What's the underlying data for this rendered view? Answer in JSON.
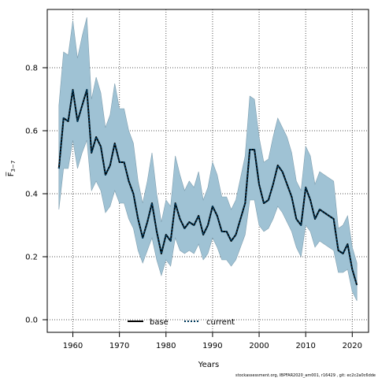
{
  "chart_data": {
    "type": "line",
    "title": "",
    "xlabel": "Years",
    "ylabel": "F̅",
    "ylabel_subscript": "3−7",
    "xlim": [
      1954.5,
      2023.5
    ],
    "ylim": [
      -0.04,
      0.985
    ],
    "xticks": [
      1960,
      1970,
      1980,
      1990,
      2000,
      2010,
      2020
    ],
    "yticks": [
      0.0,
      0.2,
      0.4,
      0.6,
      0.8
    ],
    "xtick_labels": [
      "1960",
      "1970",
      "1980",
      "1990",
      "2000",
      "2010",
      "2020"
    ],
    "ytick_labels": [
      "0.0",
      "0.2",
      "0.4",
      "0.6",
      "0.8"
    ],
    "grid": true,
    "legend_position": "bottom-center",
    "colors": {
      "band": "#9fc2d4",
      "band_edge": "#7f9fb0",
      "current": "#003a5c",
      "base": "#000000"
    },
    "x": [
      1957,
      1958,
      1959,
      1960,
      1961,
      1962,
      1963,
      1964,
      1965,
      1966,
      1967,
      1968,
      1969,
      1970,
      1971,
      1972,
      1973,
      1974,
      1975,
      1976,
      1977,
      1978,
      1979,
      1980,
      1981,
      1982,
      1983,
      1984,
      1985,
      1986,
      1987,
      1988,
      1989,
      1990,
      1991,
      1992,
      1993,
      1994,
      1995,
      1996,
      1997,
      1998,
      1999,
      2000,
      2001,
      2002,
      2003,
      2004,
      2005,
      2006,
      2007,
      2008,
      2009,
      2010,
      2011,
      2012,
      2013,
      2014,
      2015,
      2016,
      2017,
      2018,
      2019,
      2020,
      2021
    ],
    "series": [
      {
        "name": "base",
        "style": "solid",
        "values": [
          0.48,
          0.64,
          0.63,
          0.73,
          0.63,
          0.68,
          0.73,
          0.53,
          0.58,
          0.55,
          0.46,
          0.49,
          0.56,
          0.5,
          0.5,
          0.44,
          0.4,
          0.32,
          0.26,
          0.31,
          0.37,
          0.28,
          0.21,
          0.27,
          0.25,
          0.37,
          0.32,
          0.29,
          0.31,
          0.3,
          0.33,
          0.27,
          0.3,
          0.36,
          0.33,
          0.28,
          0.28,
          0.25,
          0.27,
          0.32,
          0.37,
          0.54,
          0.54,
          0.43,
          0.37,
          0.38,
          0.43,
          0.49,
          0.47,
          0.43,
          0.39,
          0.32,
          0.3,
          0.42,
          0.38,
          0.32,
          0.35,
          0.34,
          0.33,
          0.32,
          0.22,
          0.21,
          0.24,
          0.16,
          0.11
        ]
      },
      {
        "name": "current",
        "style": "dotted",
        "values": [
          0.48,
          0.64,
          0.63,
          0.73,
          0.63,
          0.68,
          0.73,
          0.53,
          0.58,
          0.55,
          0.46,
          0.49,
          0.56,
          0.5,
          0.5,
          0.44,
          0.4,
          0.32,
          0.26,
          0.31,
          0.37,
          0.28,
          0.21,
          0.27,
          0.25,
          0.37,
          0.32,
          0.29,
          0.31,
          0.3,
          0.33,
          0.27,
          0.3,
          0.36,
          0.33,
          0.28,
          0.28,
          0.25,
          0.27,
          0.32,
          0.37,
          0.54,
          0.54,
          0.43,
          0.37,
          0.38,
          0.43,
          0.49,
          0.47,
          0.43,
          0.39,
          0.32,
          0.3,
          0.42,
          0.38,
          0.32,
          0.35,
          0.34,
          0.33,
          0.32,
          0.22,
          0.21,
          0.24,
          0.16,
          0.11
        ]
      }
    ],
    "band": {
      "lower": [
        0.35,
        0.48,
        0.48,
        0.57,
        0.48,
        0.53,
        0.57,
        0.41,
        0.44,
        0.41,
        0.34,
        0.36,
        0.41,
        0.37,
        0.37,
        0.32,
        0.29,
        0.22,
        0.18,
        0.22,
        0.26,
        0.19,
        0.14,
        0.19,
        0.17,
        0.26,
        0.22,
        0.21,
        0.22,
        0.21,
        0.24,
        0.19,
        0.21,
        0.26,
        0.23,
        0.19,
        0.19,
        0.17,
        0.19,
        0.23,
        0.27,
        0.38,
        0.38,
        0.3,
        0.28,
        0.29,
        0.32,
        0.36,
        0.34,
        0.31,
        0.28,
        0.23,
        0.2,
        0.3,
        0.28,
        0.23,
        0.25,
        0.24,
        0.23,
        0.22,
        0.15,
        0.15,
        0.16,
        0.09,
        0.06
      ],
      "upper": [
        0.68,
        0.85,
        0.84,
        0.95,
        0.83,
        0.9,
        0.96,
        0.7,
        0.77,
        0.72,
        0.61,
        0.65,
        0.75,
        0.67,
        0.67,
        0.6,
        0.56,
        0.44,
        0.37,
        0.44,
        0.53,
        0.4,
        0.31,
        0.38,
        0.36,
        0.52,
        0.46,
        0.41,
        0.44,
        0.42,
        0.47,
        0.38,
        0.42,
        0.5,
        0.46,
        0.39,
        0.39,
        0.35,
        0.38,
        0.45,
        0.52,
        0.71,
        0.7,
        0.58,
        0.5,
        0.51,
        0.58,
        0.64,
        0.61,
        0.58,
        0.53,
        0.44,
        0.41,
        0.55,
        0.52,
        0.43,
        0.47,
        0.46,
        0.45,
        0.44,
        0.29,
        0.3,
        0.33,
        0.23,
        0.18
      ]
    }
  },
  "legend": {
    "items": [
      {
        "label": "base"
      },
      {
        "label": "current"
      }
    ]
  },
  "footer": {
    "text": "stockassessment.org, IBPFAR2020_am001, r16429 , git: ec2c2a0c6dde"
  }
}
